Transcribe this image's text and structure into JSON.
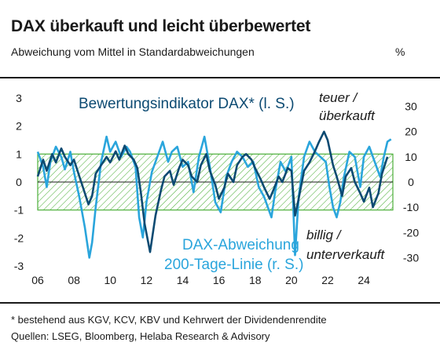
{
  "header": {
    "title": "DAX überkauft und leicht überbewertet",
    "subtitle": "Abweichung vom Mittel in Standardabweichungen",
    "unit_right": "%"
  },
  "footer": {
    "note": "* bestehend aus KGV, KCV, KBV und Kehrwert der Dividendenrendite",
    "sources": "Quellen: LSEG, Bloomberg, Helaba Research & Advisory"
  },
  "colors": {
    "dark_series": "#0c4a72",
    "light_series": "#2aa5dc",
    "band": "#4caf3a",
    "text": "#1a1a1a"
  },
  "chart_data": {
    "type": "line",
    "x_ticks": [
      "06",
      "08",
      "10",
      "12",
      "14",
      "16",
      "18",
      "20",
      "22",
      "24"
    ],
    "xlim": [
      2006,
      2025.6
    ],
    "y_left": {
      "ticks": [
        "-3",
        "-2",
        "-1",
        "0",
        "1",
        "2",
        "3"
      ],
      "lim": [
        -3,
        3
      ]
    },
    "y_right": {
      "ticks": [
        "-30",
        "-20",
        "-10",
        "0",
        "10",
        "20",
        "30"
      ],
      "lim": [
        -33.3,
        33.3
      ]
    },
    "band": [
      -1,
      1
    ],
    "annotations": {
      "top_1": "teuer /",
      "top_2": "überkauft",
      "bottom_1": "billig /",
      "bottom_2": "unterverkauft"
    },
    "series": [
      {
        "name": "Bewertungsindikator DAX* (l. S.)",
        "axis": "left",
        "x": [
          2006.0,
          2006.3,
          2006.5,
          2006.8,
          2007.0,
          2007.3,
          2007.5,
          2007.8,
          2008.0,
          2008.3,
          2008.5,
          2008.8,
          2009.0,
          2009.2,
          2009.5,
          2009.8,
          2010.0,
          2010.3,
          2010.5,
          2010.8,
          2011.0,
          2011.3,
          2011.5,
          2011.7,
          2011.9,
          2012.2,
          2012.5,
          2012.8,
          2013.0,
          2013.3,
          2013.5,
          2013.8,
          2014.0,
          2014.3,
          2014.5,
          2014.8,
          2015.0,
          2015.3,
          2015.5,
          2015.8,
          2016.0,
          2016.3,
          2016.5,
          2016.8,
          2017.0,
          2017.3,
          2017.5,
          2017.8,
          2018.0,
          2018.3,
          2018.5,
          2018.8,
          2019.0,
          2019.3,
          2019.5,
          2019.8,
          2020.0,
          2020.2,
          2020.4,
          2020.7,
          2021.0,
          2021.3,
          2021.5,
          2021.8,
          2022.0,
          2022.3,
          2022.5,
          2022.8,
          2023.0,
          2023.3,
          2023.5,
          2023.8,
          2024.0,
          2024.3,
          2024.5,
          2024.8,
          2025.0,
          2025.3
        ],
        "y": [
          0.2,
          0.8,
          0.4,
          1.0,
          0.7,
          1.2,
          0.9,
          0.6,
          0.8,
          0.2,
          -0.2,
          -0.8,
          -0.5,
          0.3,
          0.6,
          0.9,
          0.7,
          1.1,
          0.8,
          1.3,
          1.0,
          0.8,
          0.5,
          -0.4,
          -1.5,
          -2.5,
          -1.2,
          -0.3,
          0.2,
          0.4,
          -0.1,
          0.5,
          0.8,
          0.6,
          0.2,
          0.0,
          0.6,
          1.0,
          0.4,
          -0.1,
          -0.6,
          -0.2,
          0.3,
          0.0,
          0.6,
          0.9,
          1.0,
          0.8,
          0.5,
          0.1,
          -0.2,
          -0.6,
          -0.3,
          0.2,
          0.0,
          0.5,
          0.4,
          -1.2,
          -0.6,
          0.4,
          0.7,
          1.1,
          1.4,
          1.8,
          1.5,
          0.6,
          0.2,
          -0.5,
          0.2,
          0.5,
          0.0,
          -0.4,
          -0.7,
          -0.2,
          -0.9,
          -0.4,
          0.3,
          0.9
        ]
      },
      {
        "name": "DAX-Abweichung 200-Tage-Linie (r. S.)",
        "axis": "right",
        "x": [
          2006.0,
          2006.3,
          2006.5,
          2006.7,
          2007.0,
          2007.3,
          2007.5,
          2007.8,
          2008.0,
          2008.3,
          2008.6,
          2008.85,
          2009.0,
          2009.2,
          2009.5,
          2009.8,
          2010.0,
          2010.3,
          2010.6,
          2010.9,
          2011.1,
          2011.4,
          2011.6,
          2011.8,
          2012.0,
          2012.3,
          2012.6,
          2012.9,
          2013.2,
          2013.4,
          2013.7,
          2014.0,
          2014.3,
          2014.6,
          2014.9,
          2015.2,
          2015.5,
          2015.8,
          2016.1,
          2016.4,
          2016.7,
          2017.0,
          2017.3,
          2017.6,
          2017.9,
          2018.2,
          2018.5,
          2018.9,
          2019.1,
          2019.4,
          2019.7,
          2020.0,
          2020.2,
          2020.4,
          2020.7,
          2021.0,
          2021.3,
          2021.6,
          2021.9,
          2022.1,
          2022.3,
          2022.5,
          2022.7,
          2022.9,
          2023.2,
          2023.5,
          2023.8,
          2024.0,
          2024.3,
          2024.6,
          2024.9,
          2025.1,
          2025.3,
          2025.5
        ],
        "y": [
          12,
          6,
          -2,
          8,
          14,
          10,
          5,
          12,
          4,
          -6,
          -18,
          -30,
          -24,
          -10,
          8,
          18,
          12,
          16,
          10,
          14,
          12,
          6,
          -14,
          -22,
          -8,
          4,
          10,
          16,
          8,
          12,
          14,
          6,
          8,
          -4,
          10,
          18,
          6,
          -8,
          -12,
          2,
          8,
          12,
          10,
          6,
          8,
          -2,
          -6,
          -14,
          -4,
          8,
          4,
          10,
          -29,
          -6,
          10,
          16,
          12,
          10,
          8,
          -2,
          -10,
          -14,
          -8,
          2,
          12,
          10,
          -2,
          10,
          14,
          8,
          2,
          10,
          16,
          17
        ]
      }
    ]
  }
}
